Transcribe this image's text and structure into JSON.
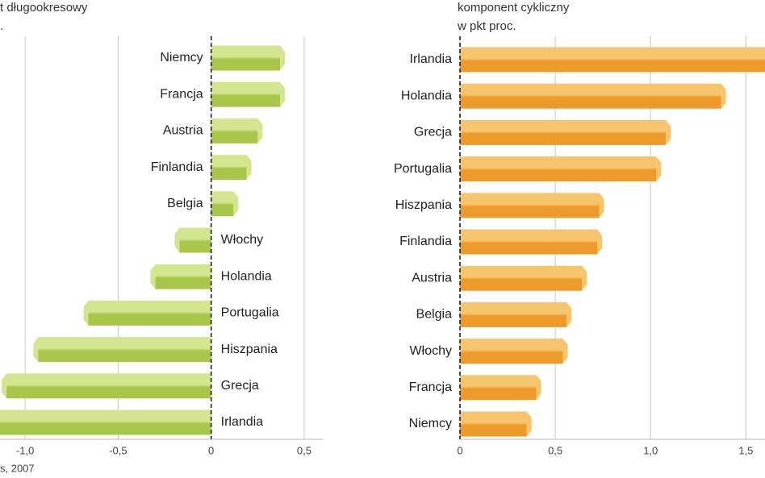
{
  "chart_data": [
    {
      "type": "bar",
      "orientation": "horizontal",
      "title_lines": [
        "t długookresowy",
        "."
      ],
      "categories": [
        "Niemcy",
        "Francja",
        "Austria",
        "Finlandia",
        "Belgia",
        "Włochy",
        "Holandia",
        "Portugalia",
        "Hiszpania",
        "Grecja",
        "Irlandia"
      ],
      "values": [
        0.37,
        0.37,
        0.25,
        0.19,
        0.12,
        -0.17,
        -0.3,
        -0.66,
        -0.93,
        -1.1,
        -1.2
      ],
      "color": "#a9c64a",
      "highlight": "#d3e58f",
      "xlim": [
        -1.135,
        0.6
      ],
      "xticks": [
        {
          "value": -1.0,
          "label": "-1,0"
        },
        {
          "value": -0.5,
          "label": "-0,5"
        },
        0,
        {
          "value": 0.5,
          "label": "0,5"
        }
      ],
      "grid": true,
      "source": "s, 2007"
    },
    {
      "type": "bar",
      "orientation": "horizontal",
      "title_lines": [
        "komponent cykliczny",
        "w pkt proc."
      ],
      "categories": [
        "Irlandia",
        "Holandia",
        "Grecja",
        "Portugalia",
        "Hiszpania",
        "Finlandia",
        "Austria",
        "Belgia",
        "Włochy",
        "Francja",
        "Niemcy"
      ],
      "values": [
        1.65,
        1.37,
        1.08,
        1.03,
        0.73,
        0.72,
        0.64,
        0.56,
        0.54,
        0.4,
        0.35
      ],
      "color": "#ec9a2a",
      "highlight": "#f7c46e",
      "xlim": [
        0,
        1.6
      ],
      "xticks": [
        0,
        {
          "value": 0.5,
          "label": "0,5"
        },
        {
          "value": 1.0,
          "label": "1,0"
        },
        {
          "value": 1.5,
          "label": "1,5"
        }
      ],
      "grid": true
    }
  ]
}
